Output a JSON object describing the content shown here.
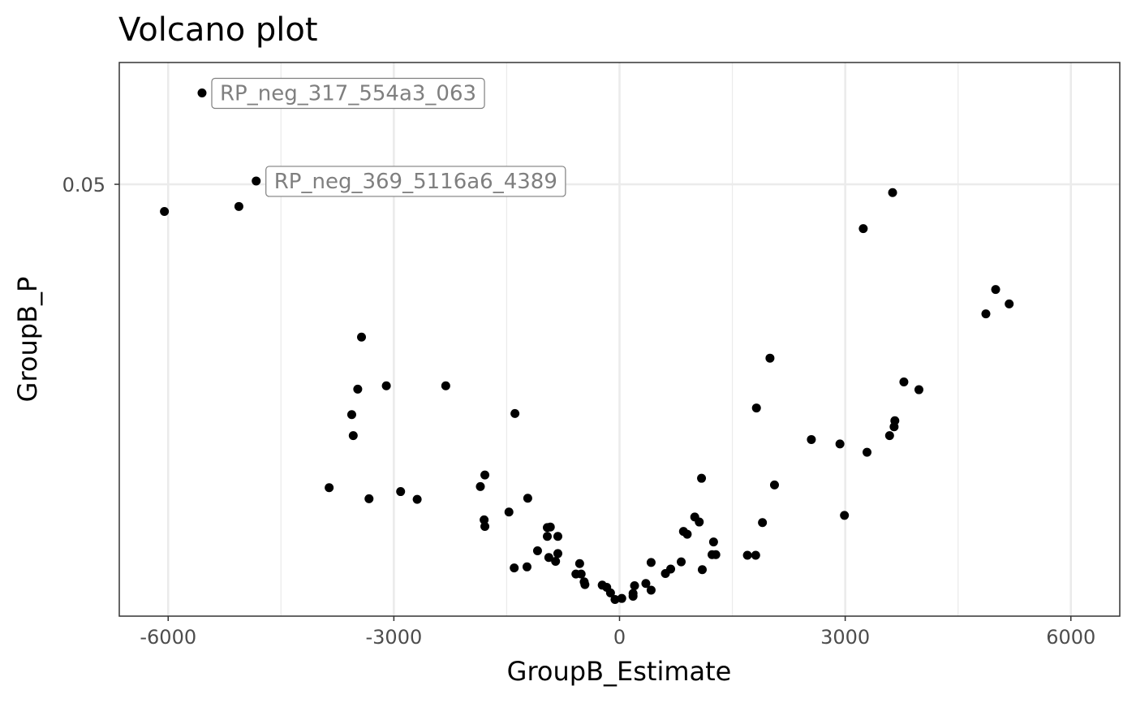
{
  "chart_data": {
    "type": "scatter",
    "title": "Volcano plot",
    "xlabel": "GroupB_Estimate",
    "ylabel": "GroupB_P",
    "xlim": [
      -6650,
      6650
    ],
    "ylim": [
      0,
      1
    ],
    "x_ticks": [
      {
        "value": -6000,
        "label": "-6000"
      },
      {
        "value": -3000,
        "label": "-3000"
      },
      {
        "value": 0,
        "label": "0"
      },
      {
        "value": 3000,
        "label": "3000"
      },
      {
        "value": 6000,
        "label": "6000"
      }
    ],
    "y_ticks": [
      {
        "value": 0.78,
        "label": "0.05"
      }
    ],
    "grid": true,
    "point_color": "#000000",
    "points": [
      {
        "x": -5550,
        "y": 0.945,
        "label": "RP_neg_317_554a3_063"
      },
      {
        "x": -4830,
        "y": 0.786,
        "label": "RP_neg_369_5116a6_4389"
      },
      {
        "x": -6050,
        "y": 0.731
      },
      {
        "x": -5060,
        "y": 0.74
      },
      {
        "x": 3630,
        "y": 0.765
      },
      {
        "x": 3240,
        "y": 0.7
      },
      {
        "x": 5000,
        "y": 0.59
      },
      {
        "x": 4870,
        "y": 0.546
      },
      {
        "x": 5180,
        "y": 0.564
      },
      {
        "x": -3430,
        "y": 0.504
      },
      {
        "x": 2000,
        "y": 0.466
      },
      {
        "x": -3480,
        "y": 0.41
      },
      {
        "x": -3100,
        "y": 0.416
      },
      {
        "x": -2310,
        "y": 0.416
      },
      {
        "x": 3780,
        "y": 0.423
      },
      {
        "x": 3980,
        "y": 0.409
      },
      {
        "x": 1820,
        "y": 0.376
      },
      {
        "x": -1390,
        "y": 0.366
      },
      {
        "x": -3560,
        "y": 0.364
      },
      {
        "x": 3660,
        "y": 0.353
      },
      {
        "x": 3650,
        "y": 0.342
      },
      {
        "x": -3540,
        "y": 0.326
      },
      {
        "x": 2550,
        "y": 0.319
      },
      {
        "x": 2930,
        "y": 0.311
      },
      {
        "x": 3590,
        "y": 0.326
      },
      {
        "x": 3290,
        "y": 0.296
      },
      {
        "x": -1790,
        "y": 0.255
      },
      {
        "x": 1090,
        "y": 0.249
      },
      {
        "x": -1850,
        "y": 0.234
      },
      {
        "x": 2060,
        "y": 0.237
      },
      {
        "x": -3860,
        "y": 0.232
      },
      {
        "x": -2910,
        "y": 0.225
      },
      {
        "x": -3330,
        "y": 0.212
      },
      {
        "x": -2690,
        "y": 0.211
      },
      {
        "x": -1220,
        "y": 0.213
      },
      {
        "x": -1470,
        "y": 0.188
      },
      {
        "x": 2990,
        "y": 0.182
      },
      {
        "x": 1000,
        "y": 0.179
      },
      {
        "x": -1800,
        "y": 0.174
      },
      {
        "x": 1060,
        "y": 0.17
      },
      {
        "x": 1900,
        "y": 0.169
      },
      {
        "x": -1790,
        "y": 0.162
      },
      {
        "x": -960,
        "y": 0.16
      },
      {
        "x": -920,
        "y": 0.161
      },
      {
        "x": 850,
        "y": 0.153
      },
      {
        "x": 900,
        "y": 0.148
      },
      {
        "x": -960,
        "y": 0.144
      },
      {
        "x": -820,
        "y": 0.144
      },
      {
        "x": 1250,
        "y": 0.134
      },
      {
        "x": -1090,
        "y": 0.118
      },
      {
        "x": -820,
        "y": 0.113
      },
      {
        "x": 1230,
        "y": 0.111
      },
      {
        "x": 1280,
        "y": 0.111
      },
      {
        "x": 1700,
        "y": 0.11
      },
      {
        "x": 1810,
        "y": 0.11
      },
      {
        "x": -940,
        "y": 0.106
      },
      {
        "x": -850,
        "y": 0.099
      },
      {
        "x": 820,
        "y": 0.098
      },
      {
        "x": 420,
        "y": 0.097
      },
      {
        "x": -530,
        "y": 0.095
      },
      {
        "x": -1230,
        "y": 0.089
      },
      {
        "x": -1400,
        "y": 0.087
      },
      {
        "x": 680,
        "y": 0.085
      },
      {
        "x": 1100,
        "y": 0.084
      },
      {
        "x": -580,
        "y": 0.076
      },
      {
        "x": -510,
        "y": 0.076
      },
      {
        "x": 610,
        "y": 0.077
      },
      {
        "x": -470,
        "y": 0.062
      },
      {
        "x": -460,
        "y": 0.057
      },
      {
        "x": 350,
        "y": 0.059
      },
      {
        "x": -230,
        "y": 0.056
      },
      {
        "x": 200,
        "y": 0.055
      },
      {
        "x": -170,
        "y": 0.052
      },
      {
        "x": 420,
        "y": 0.047
      },
      {
        "x": -120,
        "y": 0.042
      },
      {
        "x": 180,
        "y": 0.041
      },
      {
        "x": 180,
        "y": 0.036
      },
      {
        "x": -60,
        "y": 0.03
      },
      {
        "x": 30,
        "y": 0.032
      }
    ]
  }
}
